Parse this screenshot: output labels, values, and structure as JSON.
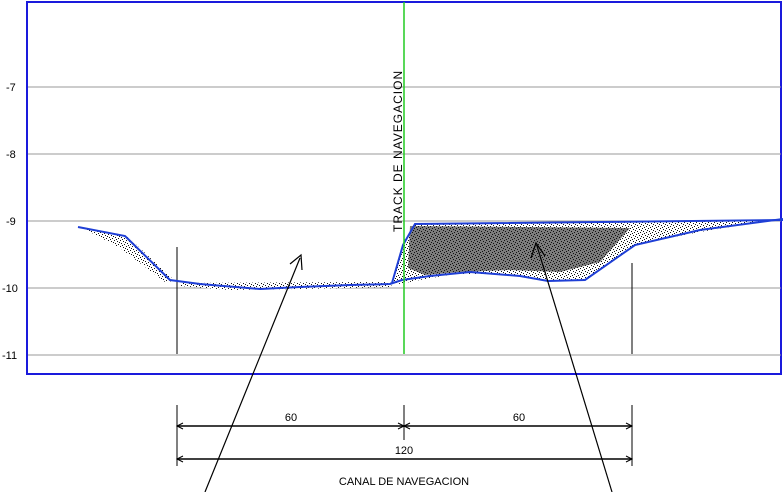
{
  "chart_data": {
    "type": "cross-section",
    "y_tick_labels": [
      "-7",
      "-8",
      "-9",
      "-10",
      "-11"
    ],
    "y_ticks": [
      -7,
      -8,
      -9,
      -10,
      -11
    ],
    "ylim": [
      -11.2,
      -6.4
    ],
    "grid": true,
    "track_label": "TRACK DE NAVEGACION",
    "dimensions": {
      "left_width": "60",
      "right_width": "60",
      "total_width": "120",
      "canal_label": "CANAL DE NAVEGACION"
    }
  },
  "colors": {
    "frame": "#1a1adc",
    "grid": "#9a9a9a",
    "track": "#22cc22",
    "seabed": "#1f3fd6",
    "fill": "#111111"
  }
}
